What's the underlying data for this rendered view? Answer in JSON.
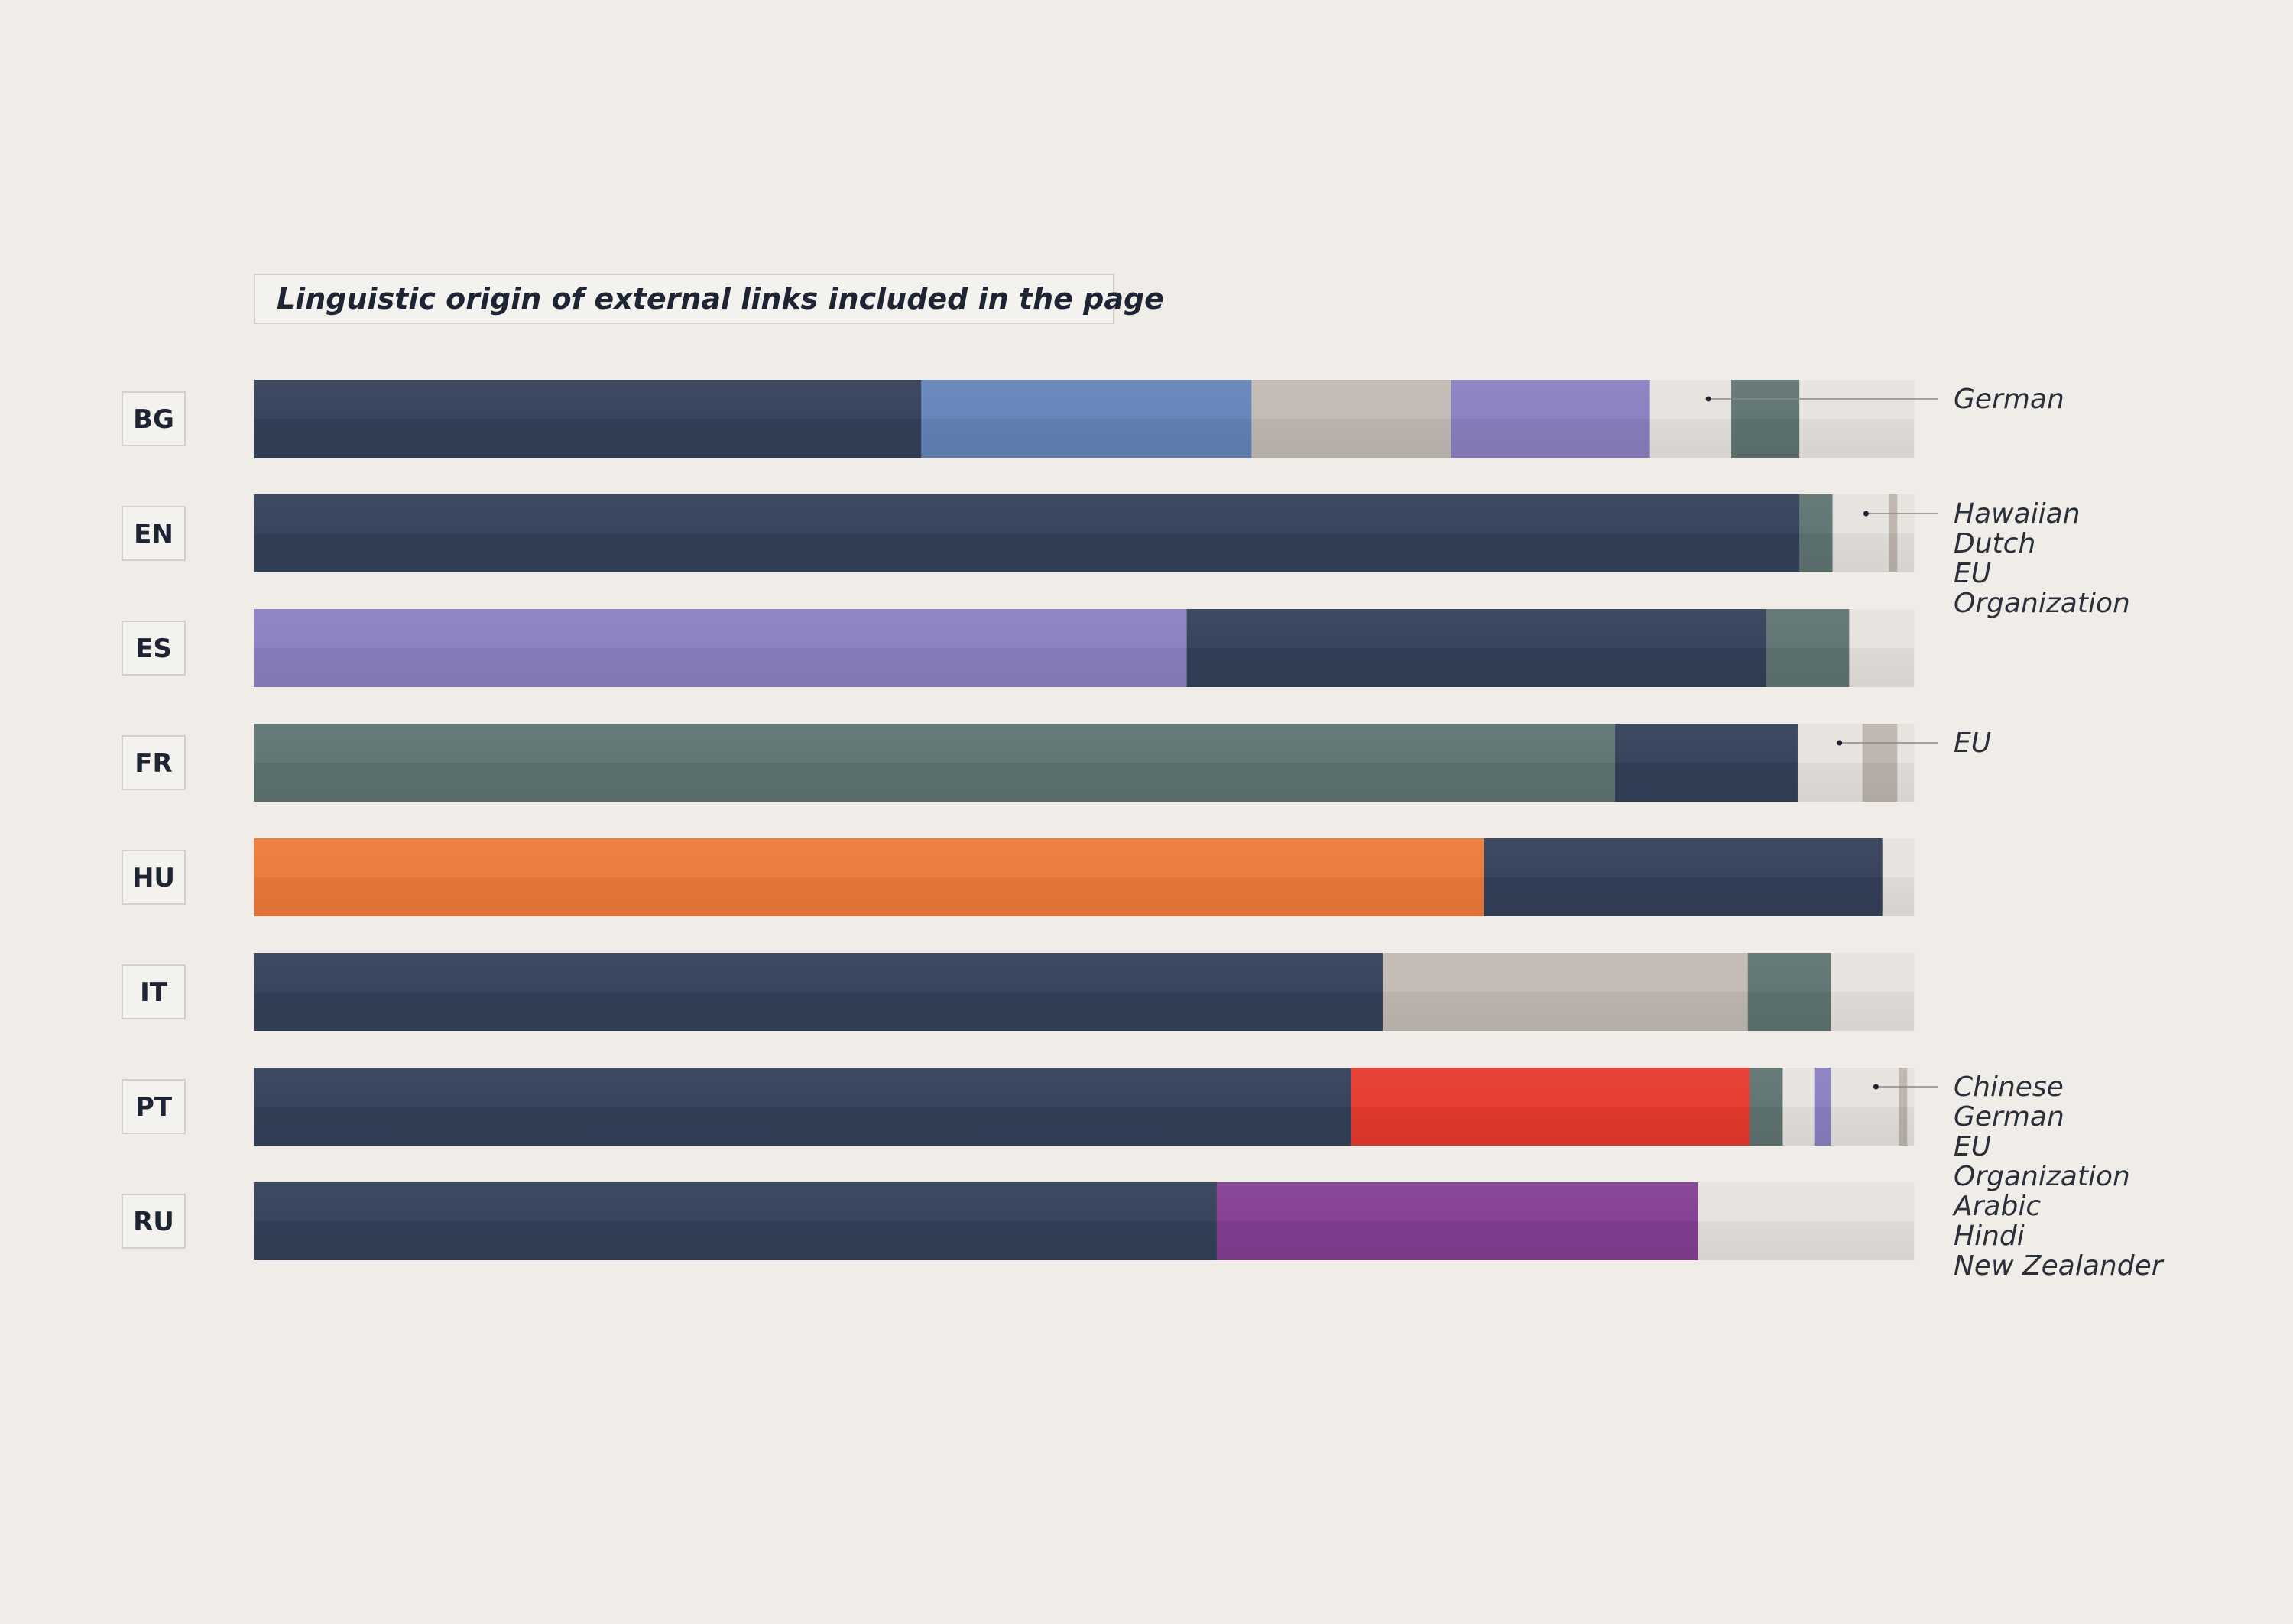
{
  "chart_data": {
    "type": "bar",
    "stacked": true,
    "title": "Linguistic origin of external links included in the page",
    "xlim": [
      0,
      100
    ],
    "colors": {
      "English": "#344159",
      "Blue": "#6483b8",
      "Grey": "#c2bab3",
      "Lavender": "#8a80c0",
      "Teal": "#5f7472",
      "Orange": "#ec7a3b",
      "Red": "#e63a2d",
      "Purple": "#843f93",
      "Other": "#e6e3df",
      "Minor": "#bdb5ad"
    },
    "categories": [
      "BG",
      "EN",
      "ES",
      "FR",
      "HU",
      "IT",
      "PT",
      "RU"
    ],
    "rows": [
      {
        "code": "BG",
        "segments": [
          {
            "color": "English",
            "value": 40.2
          },
          {
            "color": "Blue",
            "value": 19.9
          },
          {
            "color": "Grey",
            "value": 12.0
          },
          {
            "color": "Lavender",
            "value": 12.0
          },
          {
            "color": "Other",
            "value": 4.9
          },
          {
            "color": "Teal",
            "value": 4.1
          },
          {
            "color": "Other",
            "value": 6.9
          }
        ],
        "annotation_lines": [
          "German"
        ]
      },
      {
        "code": "EN",
        "segments": [
          {
            "color": "English",
            "value": 93.1
          },
          {
            "color": "Teal",
            "value": 2.0
          },
          {
            "color": "Other",
            "value": 3.4
          },
          {
            "color": "Minor",
            "value": 0.5
          },
          {
            "color": "Other",
            "value": 1.0
          }
        ],
        "annotation_lines": [
          "Hawaiian",
          "Dutch",
          "EU",
          "Organization"
        ]
      },
      {
        "code": "ES",
        "segments": [
          {
            "color": "Lavender",
            "value": 56.2
          },
          {
            "color": "English",
            "value": 34.9
          },
          {
            "color": "Teal",
            "value": 5.0
          },
          {
            "color": "Other",
            "value": 3.9
          }
        ],
        "annotation_lines": []
      },
      {
        "code": "FR",
        "segments": [
          {
            "color": "Teal",
            "value": 82.0
          },
          {
            "color": "English",
            "value": 11.0
          },
          {
            "color": "Other",
            "value": 3.9
          },
          {
            "color": "Minor",
            "value": 2.1
          },
          {
            "color": "Other",
            "value": 1.0
          }
        ],
        "annotation_lines": [
          "EU"
        ]
      },
      {
        "code": "HU",
        "segments": [
          {
            "color": "Orange",
            "value": 74.1
          },
          {
            "color": "English",
            "value": 24.0
          },
          {
            "color": "Other",
            "value": 1.9
          }
        ],
        "annotation_lines": []
      },
      {
        "code": "IT",
        "segments": [
          {
            "color": "English",
            "value": 68.0
          },
          {
            "color": "Grey",
            "value": 22.0
          },
          {
            "color": "Teal",
            "value": 5.0
          },
          {
            "color": "Other",
            "value": 5.0
          }
        ],
        "annotation_lines": []
      },
      {
        "code": "PT",
        "segments": [
          {
            "color": "English",
            "value": 66.1
          },
          {
            "color": "Red",
            "value": 24.0
          },
          {
            "color": "Teal",
            "value": 2.0
          },
          {
            "color": "Other",
            "value": 1.9
          },
          {
            "color": "Lavender",
            "value": 1.0
          },
          {
            "color": "Other",
            "value": 4.1
          },
          {
            "color": "Minor",
            "value": 0.5
          },
          {
            "color": "Other",
            "value": 0.4
          }
        ],
        "annotation_lines": [
          "Chinese",
          "German",
          "EU",
          "Organization",
          "Arabic",
          "Hindi",
          "New Zealander"
        ]
      },
      {
        "code": "RU",
        "segments": [
          {
            "color": "English",
            "value": 58.0
          },
          {
            "color": "Purple",
            "value": 29.0
          },
          {
            "color": "Other",
            "value": 13.0
          }
        ],
        "annotation_lines": []
      }
    ]
  }
}
